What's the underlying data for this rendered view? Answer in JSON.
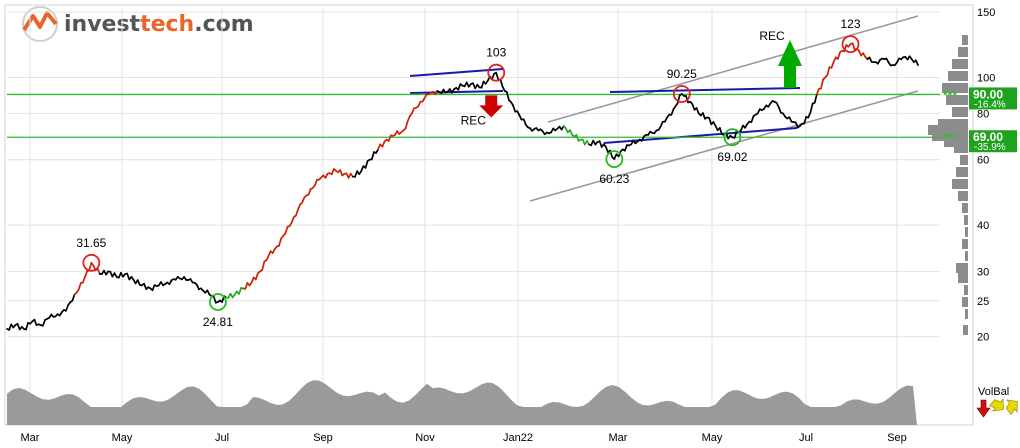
{
  "brand": {
    "name_prefix": "invest",
    "name_accent": "tech",
    "name_suffix": ".com"
  },
  "colors": {
    "brand_orange": "#e8662a",
    "brand_gray": "#555555",
    "price_line": "#000000",
    "uptrend_highlight": "#cc2200",
    "downtrend_highlight": "#22aa22",
    "channel_line": "#999999",
    "pattern_line": "#1a1aa6",
    "support_resistance": "#33bb33",
    "level_box": "#1fa31f",
    "buy_arrow": "#00aa00",
    "sell_arrow": "#cc0000",
    "volume_area": "#9a9a9a",
    "grid": "#e2e2e2",
    "volbal_down_icon": "#cc1111",
    "volbal_up_icon": "#e8d800"
  },
  "chart_data": {
    "type": "line",
    "y_scale": "log",
    "ylim": [
      19,
      152
    ],
    "y_ticks": [
      20,
      25,
      30,
      40,
      60,
      80,
      100,
      150
    ],
    "x_ticks": [
      "Mar",
      "May",
      "Jul",
      "Sep",
      "Nov",
      "Jan22",
      "Mar",
      "May",
      "Jul",
      "Sep"
    ],
    "grid": true,
    "series": [
      {
        "values": [
          21,
          21.5,
          21,
          22,
          21.5,
          22.5,
          23,
          23.5,
          26,
          28,
          31.65,
          29.5,
          30,
          29,
          29.5,
          28.5,
          27.5,
          27,
          27.5,
          28,
          28.5,
          29,
          28,
          27,
          26,
          24.81,
          25.5,
          26,
          27,
          28,
          30,
          33,
          35,
          38,
          42,
          46,
          50,
          53,
          55,
          56,
          55,
          54,
          56,
          60,
          64,
          68,
          70,
          72,
          80,
          86,
          90,
          92,
          91,
          93,
          95,
          96,
          94,
          98,
          103,
          92,
          84,
          77,
          73,
          72,
          71,
          72,
          74,
          70,
          68,
          66,
          67,
          65,
          60.23,
          64,
          66,
          68,
          70,
          72,
          76,
          82,
          90.25,
          86,
          80,
          78,
          74,
          70,
          69.02,
          72,
          76,
          80,
          84,
          86,
          80,
          76,
          74,
          78,
          90,
          100,
          110,
          118,
          123,
          118,
          112,
          110,
          112,
          108,
          112,
          114,
          108
        ]
      }
    ],
    "annotations": [
      {
        "label": "31.65",
        "value": 31.65,
        "kind": "top"
      },
      {
        "label": "24.81",
        "value": 24.81,
        "kind": "bottom"
      },
      {
        "label": "103",
        "value": 103,
        "kind": "top"
      },
      {
        "label": "60.23",
        "value": 60.23,
        "kind": "bottom"
      },
      {
        "label": "90.25",
        "value": 90.25,
        "kind": "top"
      },
      {
        "label": "69.02",
        "value": 69.02,
        "kind": "bottom"
      },
      {
        "label": "123",
        "value": 123,
        "kind": "top"
      }
    ],
    "signals": [
      {
        "label": "REC",
        "direction": "sell"
      },
      {
        "label": "REC",
        "direction": "buy"
      }
    ],
    "levels": [
      {
        "value": 90.0,
        "label": "90.00",
        "pct": "-16.4%",
        "stars": "***"
      },
      {
        "value": 69.0,
        "label": "69.00",
        "pct": "-35.9%",
        "stars": "***"
      }
    ],
    "volume_balance": {
      "label": "VolBal"
    }
  }
}
